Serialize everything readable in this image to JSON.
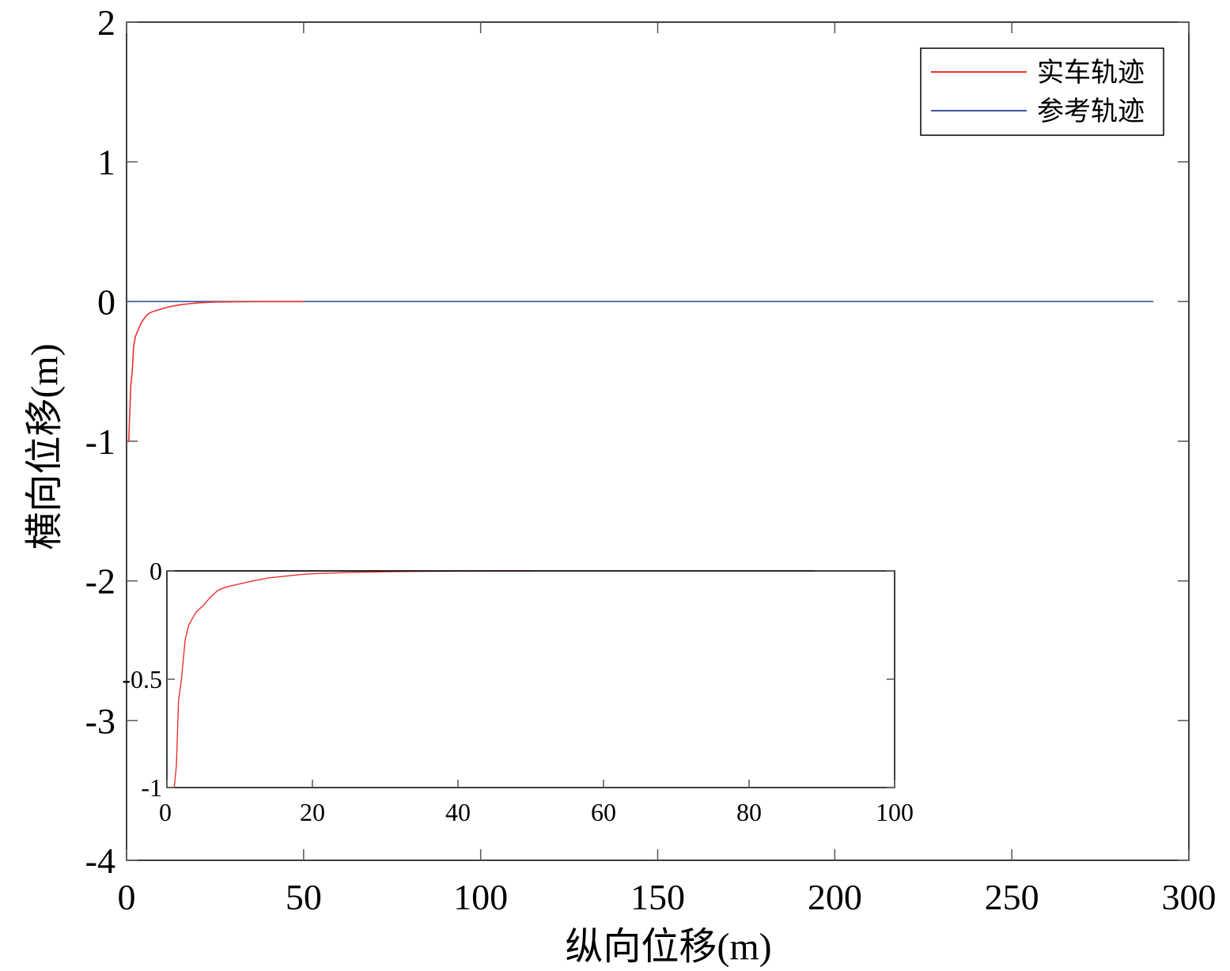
{
  "chart_data": [
    {
      "type": "line",
      "title": "",
      "xlabel": "纵向位移(m)",
      "ylabel": "横向位移(m)",
      "xlim": [
        0,
        300
      ],
      "ylim": [
        -4,
        2
      ],
      "xticks": [
        0,
        50,
        100,
        150,
        200,
        250,
        300
      ],
      "yticks": [
        -4,
        -3,
        -2,
        -1,
        0,
        1,
        2
      ],
      "grid": false,
      "legend_position": "top-right",
      "series": [
        {
          "name": "实车轨迹",
          "color": "#e8322e",
          "x": [
            0,
            0.6,
            1.2,
            1.6,
            2.0,
            2.5,
            3.0,
            3.5,
            4.0,
            5.0,
            6.0,
            7.0,
            8.0,
            9.0,
            10.0,
            12.0,
            14.0,
            16.0,
            18.0,
            20.0,
            22.0,
            25.0,
            30.0,
            35.0,
            40.0,
            45.0,
            50.0
          ],
          "y": [
            -1.0,
            -1.0,
            -0.6,
            -0.5,
            -0.32,
            -0.25,
            -0.22,
            -0.19,
            -0.16,
            -0.12,
            -0.09,
            -0.076,
            -0.068,
            -0.06,
            -0.052,
            -0.038,
            -0.028,
            -0.02,
            -0.015,
            -0.01,
            -0.007,
            -0.004,
            -0.002,
            -0.001,
            0,
            0,
            0
          ]
        },
        {
          "name": "参考轨迹",
          "color": "#3b54a4",
          "x": [
            0,
            290
          ],
          "y": [
            0,
            0
          ]
        }
      ]
    },
    {
      "type": "line",
      "title": "",
      "xlabel": "",
      "ylabel": "",
      "xlim": [
        0,
        100
      ],
      "ylim": [
        -1,
        0
      ],
      "xticks": [
        0,
        20,
        40,
        60,
        80,
        100
      ],
      "yticks": [
        -1,
        -0.5,
        0
      ],
      "grid": false,
      "series": [
        {
          "name": "实车轨迹",
          "color": "#e8322e",
          "x": [
            1.0,
            1.3,
            1.6,
            2.0,
            2.5,
            3.0,
            3.5,
            4.0,
            5.0,
            6.0,
            7.0,
            8.0,
            9.0,
            10.0,
            12.0,
            14.0,
            16.0,
            18.0,
            20.0,
            25.0,
            30.0,
            35.0,
            40.0,
            45.0,
            50.0
          ],
          "y": [
            -1.0,
            -0.9,
            -0.6,
            -0.5,
            -0.32,
            -0.25,
            -0.22,
            -0.19,
            -0.16,
            -0.12,
            -0.09,
            -0.076,
            -0.068,
            -0.06,
            -0.045,
            -0.032,
            -0.025,
            -0.018,
            -0.013,
            -0.007,
            -0.004,
            -0.002,
            -0.001,
            0,
            0
          ]
        },
        {
          "name": "参考轨迹",
          "color": "#3b54a4",
          "x": [
            0,
            89
          ],
          "y": [
            0,
            0
          ]
        }
      ]
    }
  ]
}
